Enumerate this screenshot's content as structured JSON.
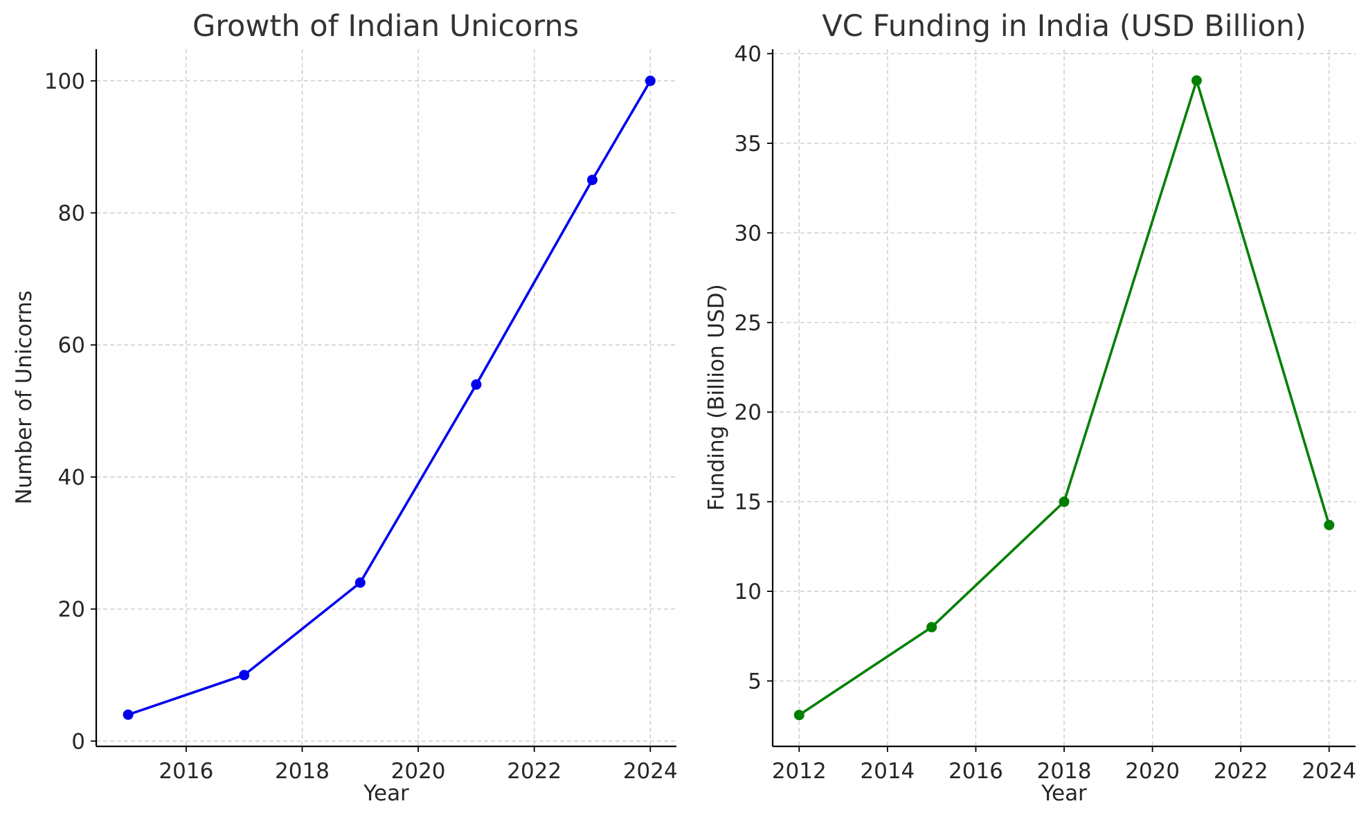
{
  "chart_data": [
    {
      "type": "line",
      "title": "Growth of Indian Unicorns",
      "xlabel": "Year",
      "ylabel": "Number of Unicorns",
      "x": [
        2015,
        2017,
        2019,
        2021,
        2023,
        2024
      ],
      "series": [
        {
          "values": [
            4,
            10,
            24,
            54,
            85,
            100
          ],
          "color": "#0000ee"
        }
      ],
      "xlim": [
        2014.45,
        2024.45
      ],
      "ylim": [
        -0.8,
        104.8
      ],
      "xticks": [
        2016,
        2018,
        2020,
        2022,
        2024
      ],
      "yticks": [
        0,
        20,
        40,
        60,
        80,
        100
      ],
      "grid": true,
      "marker": "circle"
    },
    {
      "type": "line",
      "title": "VC Funding in India (USD Billion)",
      "xlabel": "Year",
      "ylabel": "Funding (Billion USD)",
      "x": [
        2012,
        2015,
        2018,
        2021,
        2024
      ],
      "series": [
        {
          "values": [
            3.1,
            8.0,
            15.0,
            38.5,
            13.7
          ],
          "color": "#008000"
        }
      ],
      "xlim": [
        2011.4,
        2024.6
      ],
      "ylim": [
        1.35,
        40.25
      ],
      "xticks": [
        2012,
        2014,
        2016,
        2018,
        2020,
        2022,
        2024
      ],
      "yticks": [
        5,
        10,
        15,
        20,
        25,
        30,
        35,
        40
      ],
      "grid": true,
      "marker": "circle"
    }
  ]
}
